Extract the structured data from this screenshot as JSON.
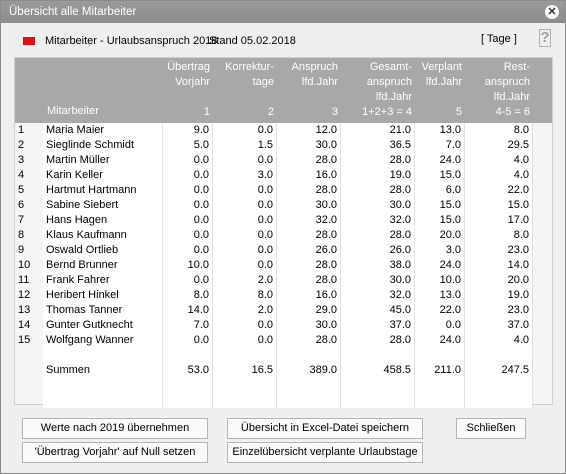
{
  "window": {
    "title": "Übersicht alle Mitarbeiter"
  },
  "header": {
    "title": "Mitarbeiter - Urlaubsanspruch 2018",
    "stand": "Stand 05.02.2018",
    "unit": "[ Tage ]",
    "help": "?"
  },
  "columns": {
    "mitarbeiter": "Mitarbeiter",
    "c1": "Übertrag\nVorjahr\n\n1",
    "c2": "Korrektur-\ntage\n\n2",
    "c3": "Anspruch\nlfd.Jahr\n\n3",
    "c4": "Gesamt-\nanspruch\nlfd.Jahr\n1+2+3 = 4",
    "c5": "Verplant\nlfd.Jahr\n\n5",
    "c6": "Rest-\nanspruch\nlfd.Jahr\n4-5 = 6"
  },
  "rows": [
    {
      "nr": "1",
      "name": "Maria Maier",
      "v1": "9.0",
      "v2": "0.0",
      "v3": "12.0",
      "v4": "21.0",
      "v5": "13.0",
      "v6": "8.0"
    },
    {
      "nr": "2",
      "name": "Sieglinde Schmidt",
      "v1": "5.0",
      "v2": "1.5",
      "v3": "30.0",
      "v4": "36.5",
      "v5": "7.0",
      "v6": "29.5"
    },
    {
      "nr": "3",
      "name": "Martin Müller",
      "v1": "0.0",
      "v2": "0.0",
      "v3": "28.0",
      "v4": "28.0",
      "v5": "24.0",
      "v6": "4.0"
    },
    {
      "nr": "4",
      "name": "Karin Keller",
      "v1": "0.0",
      "v2": "3.0",
      "v3": "16.0",
      "v4": "19.0",
      "v5": "15.0",
      "v6": "4.0"
    },
    {
      "nr": "5",
      "name": "Hartmut Hartmann",
      "v1": "0.0",
      "v2": "0.0",
      "v3": "28.0",
      "v4": "28.0",
      "v5": "6.0",
      "v6": "22.0"
    },
    {
      "nr": "6",
      "name": "Sabine Siebert",
      "v1": "0.0",
      "v2": "0.0",
      "v3": "30.0",
      "v4": "30.0",
      "v5": "15.0",
      "v6": "15.0"
    },
    {
      "nr": "7",
      "name": "Hans Hagen",
      "v1": "0.0",
      "v2": "0.0",
      "v3": "32.0",
      "v4": "32.0",
      "v5": "15.0",
      "v6": "17.0"
    },
    {
      "nr": "8",
      "name": "Klaus Kaufmann",
      "v1": "0.0",
      "v2": "0.0",
      "v3": "28.0",
      "v4": "28.0",
      "v5": "20.0",
      "v6": "8.0"
    },
    {
      "nr": "9",
      "name": "Oswald Ortlieb",
      "v1": "0.0",
      "v2": "0.0",
      "v3": "26.0",
      "v4": "26.0",
      "v5": "3.0",
      "v6": "23.0"
    },
    {
      "nr": "10",
      "name": "Bernd Brunner",
      "v1": "10.0",
      "v2": "0.0",
      "v3": "28.0",
      "v4": "38.0",
      "v5": "24.0",
      "v6": "14.0"
    },
    {
      "nr": "11",
      "name": "Frank Fahrer",
      "v1": "0.0",
      "v2": "2.0",
      "v3": "28.0",
      "v4": "30.0",
      "v5": "10.0",
      "v6": "20.0"
    },
    {
      "nr": "12",
      "name": "Heribert Hinkel",
      "v1": "8.0",
      "v2": "8.0",
      "v3": "16.0",
      "v4": "32.0",
      "v5": "13.0",
      "v6": "19.0"
    },
    {
      "nr": "13",
      "name": "Thomas Tanner",
      "v1": "14.0",
      "v2": "2.0",
      "v3": "29.0",
      "v4": "45.0",
      "v5": "22.0",
      "v6": "23.0"
    },
    {
      "nr": "14",
      "name": "Gunter Gutknecht",
      "v1": "7.0",
      "v2": "0.0",
      "v3": "30.0",
      "v4": "37.0",
      "v5": "0.0",
      "v6": "37.0"
    },
    {
      "nr": "15",
      "name": "Wolfgang Wanner",
      "v1": "0.0",
      "v2": "0.0",
      "v3": "28.0",
      "v4": "28.0",
      "v5": "24.0",
      "v6": "4.0"
    },
    {
      "nr": "",
      "name": "",
      "v1": "",
      "v2": "",
      "v3": "",
      "v4": "",
      "v5": "",
      "v6": ""
    },
    {
      "nr": "",
      "name": "Summen",
      "v1": "53.0",
      "v2": "16.5",
      "v3": "389.0",
      "v4": "458.5",
      "v5": "211.0",
      "v6": "247.5"
    },
    {
      "nr": "",
      "name": "",
      "v1": "",
      "v2": "",
      "v3": "",
      "v4": "",
      "v5": "",
      "v6": ""
    },
    {
      "nr": "",
      "name": "",
      "v1": "",
      "v2": "",
      "v3": "",
      "v4": "",
      "v5": "",
      "v6": ""
    }
  ],
  "buttons": {
    "werte": "Werte nach 2019 übernehmen",
    "excel": "Übersicht in Excel-Datei speichern",
    "schliessen": "Schließen",
    "uebertrag": "'Übertrag Vorjahr' auf Null setzen",
    "einzel": "Einzelübersicht verplante Urlaubstage"
  }
}
